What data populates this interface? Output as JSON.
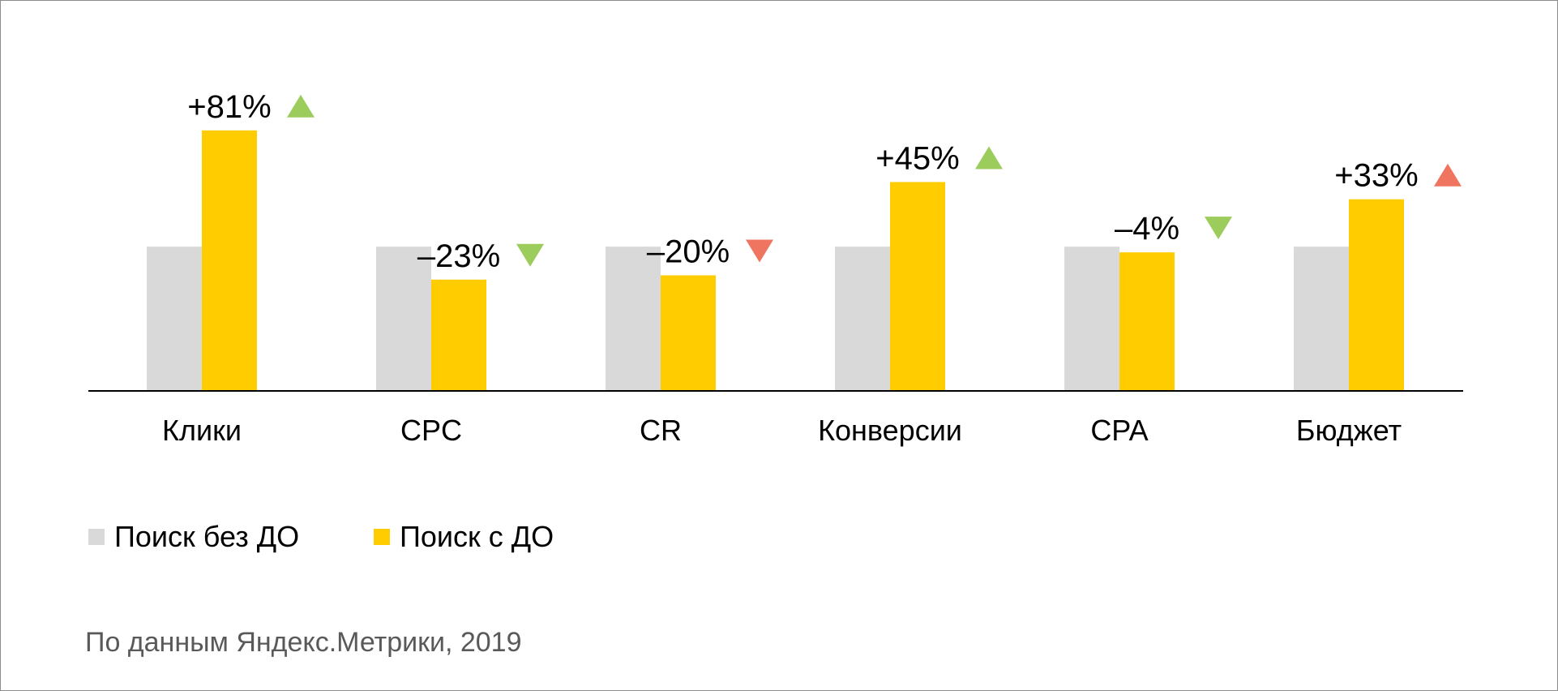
{
  "chart_data": {
    "type": "bar",
    "categories": [
      "Клики",
      "CPC",
      "CR",
      "Конверсии",
      "CPA",
      "Бюджет"
    ],
    "series": [
      {
        "name": "Поиск без ДО",
        "color": "#d9d9d9",
        "values": [
          100,
          100,
          100,
          100,
          100,
          100
        ]
      },
      {
        "name": "Поиск с ДО",
        "color": "#ffcc00",
        "values": [
          181,
          77,
          80,
          145,
          96,
          133
        ]
      }
    ],
    "change_labels": [
      "+81%",
      "–23%",
      "–20%",
      "+45%",
      "–4%",
      "+33%"
    ],
    "change_markers": [
      {
        "icon": "triangle-up-icon",
        "color": "#9bcc5c"
      },
      {
        "icon": "triangle-down-icon",
        "color": "#9bcc5c"
      },
      {
        "icon": "triangle-down-icon",
        "color": "#ef7561"
      },
      {
        "icon": "triangle-up-icon",
        "color": "#9bcc5c"
      },
      {
        "icon": "triangle-down-icon",
        "color": "#9bcc5c"
      },
      {
        "icon": "triangle-up-icon",
        "color": "#ef7561"
      }
    ],
    "ylim": [
      0,
      260
    ],
    "grid": false,
    "legend_position": "bottom-left",
    "source_note": "По данным Яндекс.Метрики, 2019"
  }
}
